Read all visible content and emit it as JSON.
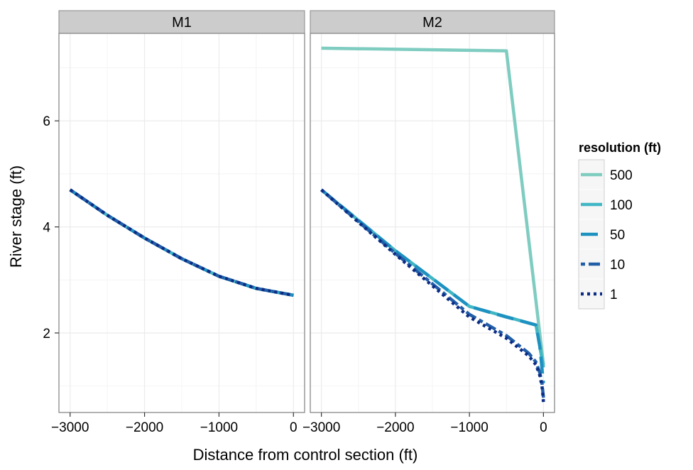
{
  "chart_data": {
    "type": "line",
    "title": "",
    "xlabel": "Distance from control section  (ft)",
    "ylabel": "River stage  (ft)",
    "xlim": [
      -3150,
      150
    ],
    "ylim": [
      0.5,
      7.65
    ],
    "x_ticks": [
      -3000,
      -2000,
      -1000,
      0
    ],
    "x_tick_labels": [
      "−3000",
      "−2000",
      "−1000",
      "0"
    ],
    "y_ticks": [
      2,
      4,
      6
    ],
    "y_tick_labels": [
      "2",
      "4",
      "6"
    ],
    "grid": true,
    "legend": {
      "title": "resolution (ft)",
      "position": "right",
      "entries": [
        "500",
        "100",
        "50",
        "10",
        "1"
      ]
    },
    "facets": [
      {
        "label": "M1",
        "series": [
          {
            "name": "500",
            "x": [
              -3000,
              -2500,
              -2000,
              -1500,
              -1000,
              -500,
              0
            ],
            "y": [
              4.7,
              4.22,
              3.79,
              3.4,
              3.07,
              2.84,
              2.71
            ]
          },
          {
            "name": "100",
            "x": [
              -3000,
              -2500,
              -2000,
              -1500,
              -1000,
              -500,
              0
            ],
            "y": [
              4.7,
              4.22,
              3.79,
              3.4,
              3.07,
              2.84,
              2.71
            ]
          },
          {
            "name": "50",
            "x": [
              -3000,
              -2500,
              -2000,
              -1500,
              -1000,
              -500,
              0
            ],
            "y": [
              4.7,
              4.22,
              3.79,
              3.4,
              3.07,
              2.84,
              2.71
            ]
          },
          {
            "name": "10",
            "x": [
              -3000,
              -2500,
              -2000,
              -1500,
              -1000,
              -500,
              0
            ],
            "y": [
              4.7,
              4.22,
              3.79,
              3.4,
              3.07,
              2.84,
              2.71
            ]
          },
          {
            "name": "1",
            "x": [
              -3000,
              -2500,
              -2000,
              -1500,
              -1000,
              -500,
              0
            ],
            "y": [
              4.7,
              4.22,
              3.79,
              3.4,
              3.07,
              2.84,
              2.71
            ]
          }
        ]
      },
      {
        "label": "M2",
        "series": [
          {
            "name": "500",
            "x": [
              -3000,
              -500,
              0
            ],
            "y": [
              7.37,
              7.32,
              1.4
            ]
          },
          {
            "name": "100",
            "x": [
              -3000,
              -2000,
              -1000,
              -100,
              0
            ],
            "y": [
              4.7,
              3.55,
              2.5,
              2.15,
              1.35
            ]
          },
          {
            "name": "50",
            "x": [
              -3000,
              -2000,
              -1000,
              -500,
              -100,
              -50,
              0
            ],
            "y": [
              4.7,
              3.55,
              2.5,
              2.3,
              2.15,
              1.75,
              1.05
            ]
          },
          {
            "name": "10",
            "x": [
              -3000,
              -2000,
              -1000,
              -500,
              -200,
              -100,
              -50,
              -20,
              0
            ],
            "y": [
              4.7,
              3.5,
              2.35,
              1.95,
              1.62,
              1.45,
              1.25,
              1.05,
              0.78
            ]
          },
          {
            "name": "1",
            "x": [
              -3000,
              -2000,
              -1000,
              -500,
              -200,
              -100,
              -50,
              -20,
              -5,
              0
            ],
            "y": [
              4.7,
              3.48,
              2.3,
              1.9,
              1.57,
              1.4,
              1.2,
              1.0,
              0.8,
              0.68
            ]
          }
        ]
      }
    ]
  },
  "styles": {
    "series_colors": {
      "500": "#7fccc0",
      "100": "#41b6c4",
      "50": "#1d91c0",
      "10": "#225ea8",
      "1": "#0c2c84"
    },
    "strip_background": "#cccccc",
    "grid_color": "#ebebeb"
  }
}
